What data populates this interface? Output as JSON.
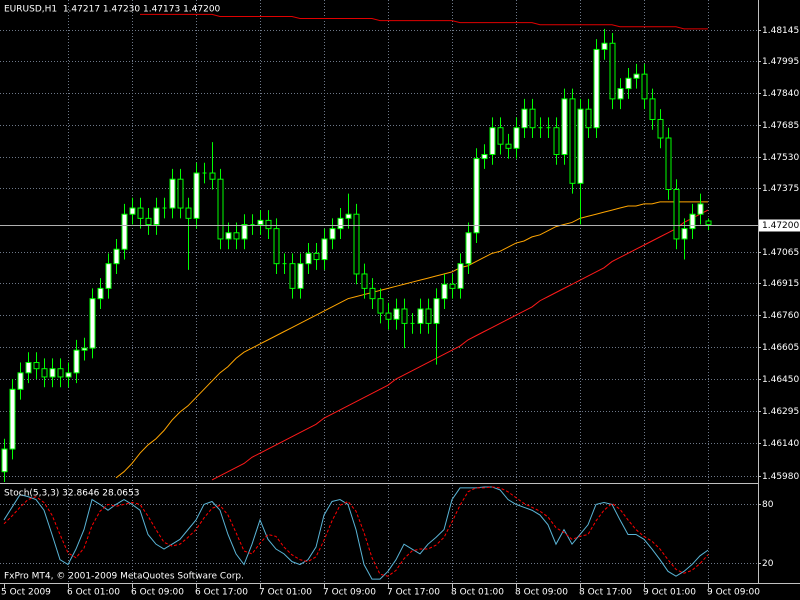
{
  "chart_data": [
    {
      "type": "candlestick",
      "title": "EURUSD,H1  1.47217 1.47230 1.47173 1.47200",
      "categories": [
        "5 Oct 2009",
        null,
        null,
        null,
        null,
        null,
        null,
        null,
        "6 Oct 01:00",
        null,
        null,
        null,
        null,
        null,
        null,
        null,
        "6 Oct 09:00",
        null,
        null,
        null,
        null,
        null,
        null,
        null,
        "6 Oct 17:00",
        null,
        null,
        null,
        null,
        null,
        null,
        null,
        "7 Oct 01:00",
        null,
        null,
        null,
        null,
        null,
        null,
        null,
        "7 Oct 09:00",
        null,
        null,
        null,
        null,
        null,
        null,
        null,
        "7 Oct 17:00",
        null,
        null,
        null,
        null,
        null,
        null,
        null,
        "8 Oct 01:00",
        null,
        null,
        null,
        null,
        null,
        null,
        null,
        "8 Oct 09:00",
        null,
        null,
        null,
        null,
        null,
        null,
        null,
        "8 Oct 17:00",
        null,
        null,
        null,
        null,
        null,
        null,
        null,
        "9 Oct 01:00",
        null,
        null,
        null,
        null,
        null,
        null,
        null,
        "9 Oct 09:00"
      ],
      "open": [
        1.46,
        1.4611,
        1.464,
        1.4648,
        1.4653,
        1.465,
        1.4646,
        1.465,
        1.4646,
        1.4648,
        1.4659,
        1.466,
        1.4684,
        1.4689,
        1.4701,
        1.4708,
        1.4725,
        1.4728,
        1.4723,
        1.472,
        1.4728,
        1.4728,
        1.4742,
        1.4728,
        1.4723,
        1.4745,
        1.4745,
        1.4742,
        1.4713,
        1.4716,
        1.4713,
        1.472,
        1.472,
        1.4722,
        1.4718,
        1.4701,
        1.4701,
        1.4689,
        1.4701,
        1.4706,
        1.4703,
        1.4713,
        1.4718,
        1.4723,
        1.4725,
        1.4696,
        1.4689,
        1.4684,
        1.4677,
        1.4674,
        1.4679,
        1.4672,
        1.4672,
        1.4679,
        1.4672,
        1.4684,
        1.4691,
        1.4689,
        1.4701,
        1.4716,
        1.4752,
        1.4754,
        1.4767,
        1.4759,
        1.4757,
        1.4767,
        1.4776,
        1.4767,
        1.4767,
        1.4767,
        1.4754,
        1.4781,
        1.474,
        1.4776,
        1.4767,
        1.4805,
        1.4808,
        1.4781,
        1.4786,
        1.4791,
        1.4793,
        1.4781,
        1.4771,
        1.4762,
        1.4737,
        1.4713,
        1.4718,
        1.4725,
        1.47217
      ],
      "high": [
        1.4616,
        1.4645,
        1.4653,
        1.4658,
        1.4658,
        1.4655,
        1.4655,
        1.4655,
        1.4653,
        1.4664,
        1.4665,
        1.4689,
        1.4694,
        1.4706,
        1.4713,
        1.473,
        1.4733,
        1.4733,
        1.4728,
        1.4733,
        1.4733,
        1.4747,
        1.4747,
        1.4733,
        1.475,
        1.475,
        1.476,
        1.4747,
        1.4721,
        1.4721,
        1.4725,
        1.4725,
        1.4727,
        1.4727,
        1.4723,
        1.4706,
        1.4706,
        1.4706,
        1.4711,
        1.4711,
        1.4718,
        1.4723,
        1.4728,
        1.4735,
        1.473,
        1.4701,
        1.4694,
        1.4689,
        1.4682,
        1.4684,
        1.4684,
        1.4677,
        1.4684,
        1.4684,
        1.4689,
        1.4696,
        1.4696,
        1.4706,
        1.4721,
        1.4757,
        1.4759,
        1.4772,
        1.4772,
        1.4764,
        1.4772,
        1.4781,
        1.4781,
        1.4772,
        1.4772,
        1.4772,
        1.4786,
        1.4786,
        1.4781,
        1.4781,
        1.481,
        1.4815,
        1.4813,
        1.4791,
        1.4796,
        1.4798,
        1.4798,
        1.4786,
        1.4776,
        1.4767,
        1.4742,
        1.4723,
        1.473,
        1.4735,
        1.4723
      ],
      "low": [
        1.4595,
        1.4606,
        1.4635,
        1.4643,
        1.4645,
        1.4641,
        1.4641,
        1.4641,
        1.4641,
        1.4643,
        1.4654,
        1.4655,
        1.4679,
        1.4684,
        1.4696,
        1.4703,
        1.472,
        1.4718,
        1.4715,
        1.4715,
        1.4723,
        1.4723,
        1.4723,
        1.4698,
        1.4718,
        1.474,
        1.4737,
        1.4708,
        1.4708,
        1.4708,
        1.4708,
        1.4715,
        1.4715,
        1.4713,
        1.4696,
        1.4696,
        1.4684,
        1.4684,
        1.4696,
        1.4698,
        1.4698,
        1.4708,
        1.4713,
        1.4718,
        1.4691,
        1.4684,
        1.4679,
        1.4672,
        1.4669,
        1.4669,
        1.466,
        1.4667,
        1.4667,
        1.4667,
        1.4652,
        1.4679,
        1.4684,
        1.4684,
        1.4696,
        1.4711,
        1.4747,
        1.4749,
        1.4754,
        1.4752,
        1.4752,
        1.4762,
        1.4762,
        1.4762,
        1.4762,
        1.4749,
        1.4749,
        1.4735,
        1.472,
        1.4762,
        1.4762,
        1.48,
        1.4776,
        1.4776,
        1.4781,
        1.4786,
        1.4776,
        1.4766,
        1.4757,
        1.4732,
        1.4708,
        1.4703,
        1.4713,
        1.472,
        1.47173
      ],
      "close": [
        1.4611,
        1.464,
        1.4648,
        1.4653,
        1.465,
        1.4646,
        1.465,
        1.4646,
        1.4648,
        1.4659,
        1.466,
        1.4684,
        1.4689,
        1.4701,
        1.4708,
        1.4725,
        1.4728,
        1.4723,
        1.472,
        1.4728,
        1.4728,
        1.4742,
        1.4728,
        1.4723,
        1.4745,
        1.4745,
        1.4742,
        1.4713,
        1.4716,
        1.4713,
        1.472,
        1.472,
        1.4722,
        1.4718,
        1.4701,
        1.4701,
        1.4689,
        1.4701,
        1.4706,
        1.4703,
        1.4713,
        1.4718,
        1.4723,
        1.4725,
        1.4696,
        1.4689,
        1.4684,
        1.4677,
        1.4674,
        1.4679,
        1.4672,
        1.4672,
        1.4679,
        1.4672,
        1.4684,
        1.4691,
        1.4689,
        1.4701,
        1.4716,
        1.4752,
        1.4754,
        1.4767,
        1.4759,
        1.4757,
        1.4767,
        1.4776,
        1.4767,
        1.4767,
        1.4767,
        1.4754,
        1.4781,
        1.474,
        1.4776,
        1.4767,
        1.4805,
        1.4808,
        1.4781,
        1.4786,
        1.4791,
        1.4793,
        1.4781,
        1.4771,
        1.4762,
        1.4737,
        1.4713,
        1.4718,
        1.4725,
        1.473,
        1.472
      ],
      "color": "#00ff00",
      "bull_fill": "#ffffff",
      "bear_fill": "#000000",
      "ylim": [
        1.4595,
        1.4829
      ],
      "yticks": [
        1.48145,
        1.47995,
        {
          "value": 1.4784,
          "label": "1.47840"
        },
        1.47685,
        {
          "value": 1.4753,
          "label": "1.47530"
        },
        1.47375,
        1.47065,
        1.46915,
        {
          "value": 1.4676,
          "label": "1.46760"
        },
        1.46605,
        {
          "value": 1.4645,
          "label": "1.46450"
        },
        1.46295,
        {
          "value": 1.4614,
          "label": "1.46140"
        },
        {
          "value": 1.4598,
          "label": "1.45980"
        }
      ],
      "grid": true,
      "price_line": {
        "value": 1.472,
        "label": "1.47200",
        "color": "#b0b0b0"
      },
      "overlays": [
        {
          "color": "#ffa500",
          "values": [
            null,
            null,
            null,
            null,
            null,
            null,
            null,
            null,
            null,
            null,
            null,
            null,
            null,
            null,
            1.4597,
            1.46,
            1.4604,
            1.4609,
            1.4613,
            1.4616,
            1.462,
            1.4625,
            1.4629,
            1.4632,
            1.4636,
            1.464,
            1.4644,
            1.4648,
            1.4651,
            1.4655,
            1.4658,
            1.466,
            1.4662,
            1.4664,
            1.4666,
            1.4668,
            1.467,
            1.4672,
            1.4674,
            1.4676,
            1.4678,
            1.468,
            1.4682,
            1.4684,
            1.4685,
            1.4686,
            1.4687,
            1.4688,
            1.4689,
            1.469,
            1.4691,
            1.4692,
            1.4693,
            1.4694,
            1.4695,
            1.4696,
            1.4697,
            1.4699,
            1.47,
            1.4702,
            1.4704,
            1.4706,
            1.4707,
            1.4709,
            1.4711,
            1.4712,
            1.4714,
            1.4715,
            1.4717,
            1.4719,
            1.472,
            1.4721,
            1.4723,
            1.4724,
            1.4725,
            1.4726,
            1.4727,
            1.4728,
            1.4729,
            1.4729,
            1.473,
            1.473,
            1.4731,
            1.4731,
            1.4731,
            1.4731,
            1.4731,
            1.4731,
            1.4731
          ]
        },
        {
          "color": "#e00000",
          "values": [
            null,
            null,
            null,
            null,
            null,
            null,
            null,
            null,
            null,
            null,
            null,
            null,
            null,
            null,
            null,
            null,
            null,
            1.4822,
            1.4822,
            1.4822,
            1.4822,
            1.4822,
            1.4822,
            1.4822,
            1.4822,
            1.4822,
            1.4822,
            1.4821,
            1.4821,
            1.4821,
            1.4821,
            1.4821,
            1.4821,
            1.4821,
            1.4821,
            1.4821,
            1.4821,
            1.482,
            1.482,
            1.482,
            1.482,
            1.482,
            1.482,
            1.482,
            1.482,
            1.482,
            1.482,
            1.4819,
            1.4819,
            1.4819,
            1.4819,
            1.4819,
            1.4819,
            1.4819,
            1.4819,
            1.4819,
            1.4819,
            1.4818,
            1.4818,
            1.4818,
            1.4818,
            1.4818,
            1.4818,
            1.4818,
            1.4818,
            1.4818,
            1.4818,
            1.4817,
            1.4817,
            1.4817,
            1.4817,
            1.4817,
            1.4817,
            1.4817,
            1.4817,
            1.4817,
            1.4817,
            1.4816,
            1.4816,
            1.4816,
            1.4816,
            1.4816,
            1.4816,
            1.4816,
            1.4816,
            1.4815,
            1.4815,
            1.4815,
            1.4815
          ]
        },
        {
          "color": "#ff1a1a",
          "values": [
            null,
            null,
            null,
            null,
            null,
            null,
            null,
            null,
            null,
            null,
            null,
            null,
            null,
            null,
            null,
            null,
            null,
            null,
            null,
            null,
            null,
            null,
            null,
            null,
            null,
            null,
            1.4596,
            1.4598,
            1.46,
            1.4602,
            1.4604,
            1.4607,
            1.4609,
            1.4611,
            1.4613,
            1.4615,
            1.4617,
            1.4619,
            1.4621,
            1.4623,
            1.4626,
            1.4628,
            1.463,
            1.4632,
            1.4634,
            1.4636,
            1.4638,
            1.464,
            1.4642,
            1.4645,
            1.4647,
            1.4649,
            1.4651,
            1.4653,
            1.4655,
            1.4657,
            1.4659,
            1.4661,
            1.4664,
            1.4666,
            1.4668,
            1.467,
            1.4672,
            1.4674,
            1.4676,
            1.4678,
            1.468,
            1.4683,
            1.4685,
            1.4687,
            1.4689,
            1.4691,
            1.4693,
            1.4695,
            1.4697,
            1.4699,
            1.4702,
            1.4704,
            1.4706,
            1.4708,
            1.471,
            1.4712,
            1.4714,
            1.4716,
            1.4718,
            1.4721,
            1.4723,
            1.4725,
            1.4727
          ]
        }
      ]
    },
    {
      "type": "line",
      "title": "Stoch(5,3,3) 32.8646 28.0653",
      "annotation": "FxPro MT4, © 2001-2009 MetaQuotes Software Corp.",
      "series": [
        {
          "color": "#5ab4d6",
          "dash": false,
          "values": [
            64,
            77,
            90,
            88,
            85,
            74,
            49,
            23,
            18,
            34,
            54,
            85,
            80,
            74,
            80,
            85,
            80,
            74,
            49,
            39,
            34,
            39,
            44,
            54,
            64,
            80,
            83,
            74,
            49,
            29,
            18,
            39,
            64,
            44,
            34,
            29,
            21,
            18,
            23,
            36,
            69,
            83,
            85,
            80,
            54,
            18,
            3,
            3,
            11,
            23,
            39,
            34,
            29,
            39,
            46,
            54,
            85,
            97,
            97,
            97,
            98,
            98,
            95,
            85,
            80,
            77,
            74,
            69,
            59,
            39,
            54,
            39,
            49,
            59,
            80,
            82,
            80,
            64,
            49,
            49,
            44,
            34,
            23,
            11,
            6,
            11,
            18,
            27,
            32.8646
          ]
        },
        {
          "color": "#ff0000",
          "dash": true,
          "values": [
            60,
            68,
            77,
            85,
            88,
            82,
            69,
            49,
            30,
            25,
            35,
            58,
            73,
            80,
            78,
            80,
            82,
            80,
            68,
            54,
            41,
            37,
            39,
            46,
            54,
            66,
            76,
            79,
            69,
            51,
            32,
            29,
            40,
            49,
            47,
            36,
            28,
            23,
            21,
            26,
            43,
            63,
            79,
            83,
            73,
            51,
            25,
            8,
            6,
            12,
            24,
            32,
            34,
            34,
            38,
            46,
            62,
            79,
            93,
            97,
            97,
            98,
            97,
            93,
            87,
            81,
            77,
            73,
            67,
            56,
            51,
            44,
            47,
            49,
            63,
            74,
            81,
            75,
            64,
            54,
            47,
            42,
            34,
            23,
            13,
            9,
            12,
            19,
            28.0653
          ]
        }
      ],
      "ylim": [
        0,
        100
      ],
      "yticks": [
        80,
        20
      ],
      "grid": true
    }
  ]
}
